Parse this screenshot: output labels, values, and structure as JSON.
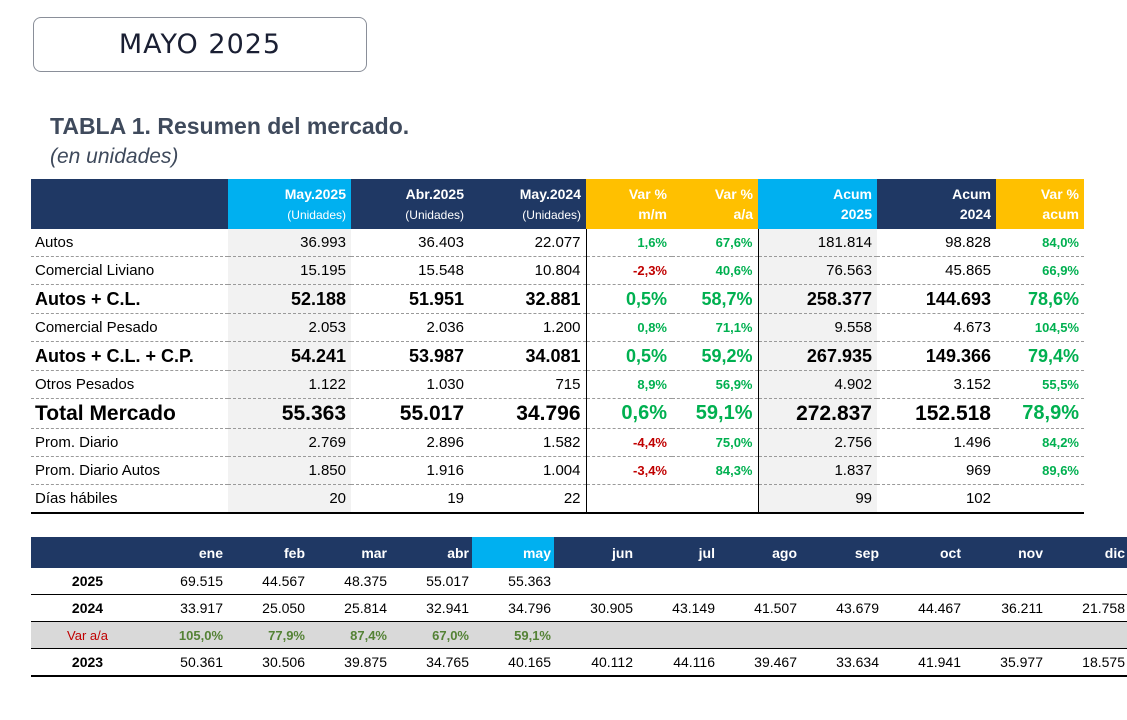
{
  "header": {
    "month": "MAYO 2025"
  },
  "table1": {
    "title": "TABLA 1. Resumen del mercado.",
    "subtitle": "(en unidades)",
    "columns": [
      {
        "l1": "May.2025",
        "l2": "(Unidades)"
      },
      {
        "l1": "Abr.2025",
        "l2": "(Unidades)"
      },
      {
        "l1": "May.2024",
        "l2": "(Unidades)"
      },
      {
        "l1": "Var %",
        "l2": "m/m"
      },
      {
        "l1": "Var %",
        "l2": "a/a"
      },
      {
        "l1": "Acum",
        "l2": "2025"
      },
      {
        "l1": "Acum",
        "l2": "2024"
      },
      {
        "l1": "Var %",
        "l2": "acum"
      }
    ],
    "rows": [
      {
        "label": "Autos",
        "may25": "36.993",
        "abr25": "36.403",
        "may24": "22.077",
        "mm": "1,6%",
        "aa": "67,6%",
        "acum25": "181.814",
        "acum24": "98.828",
        "vacum": "84,0%"
      },
      {
        "label": "Comercial Liviano",
        "may25": "15.195",
        "abr25": "15.548",
        "may24": "10.804",
        "mm": "-2,3%",
        "aa": "40,6%",
        "acum25": "76.563",
        "acum24": "45.865",
        "vacum": "66,9%"
      },
      {
        "label": "Autos + C.L.",
        "may25": "52.188",
        "abr25": "51.951",
        "may24": "32.881",
        "mm": "0,5%",
        "aa": "58,7%",
        "acum25": "258.377",
        "acum24": "144.693",
        "vacum": "78,6%"
      },
      {
        "label": "Comercial Pesado",
        "may25": "2.053",
        "abr25": "2.036",
        "may24": "1.200",
        "mm": "0,8%",
        "aa": "71,1%",
        "acum25": "9.558",
        "acum24": "4.673",
        "vacum": "104,5%"
      },
      {
        "label": "Autos + C.L. + C.P.",
        "may25": "54.241",
        "abr25": "53.987",
        "may24": "34.081",
        "mm": "0,5%",
        "aa": "59,2%",
        "acum25": "267.935",
        "acum24": "149.366",
        "vacum": "79,4%"
      },
      {
        "label": "Otros Pesados",
        "may25": "1.122",
        "abr25": "1.030",
        "may24": "715",
        "mm": "8,9%",
        "aa": "56,9%",
        "acum25": "4.902",
        "acum24": "3.152",
        "vacum": "55,5%"
      },
      {
        "label": "Total Mercado",
        "may25": "55.363",
        "abr25": "55.017",
        "may24": "34.796",
        "mm": "0,6%",
        "aa": "59,1%",
        "acum25": "272.837",
        "acum24": "152.518",
        "vacum": "78,9%"
      },
      {
        "label": "Prom. Diario",
        "may25": "2.769",
        "abr25": "2.896",
        "may24": "1.582",
        "mm": "-4,4%",
        "aa": "75,0%",
        "acum25": "2.756",
        "acum24": "1.496",
        "vacum": "84,2%"
      },
      {
        "label": "Prom. Diario Autos",
        "may25": "1.850",
        "abr25": "1.916",
        "may24": "1.004",
        "mm": "-3,4%",
        "aa": "84,3%",
        "acum25": "1.837",
        "acum24": "969",
        "vacum": "89,6%"
      },
      {
        "label": "Días hábiles",
        "may25": "20",
        "abr25": "19",
        "may24": "22",
        "mm": "",
        "aa": "",
        "acum25": "99",
        "acum24": "102",
        "vacum": ""
      }
    ]
  },
  "table2": {
    "months": [
      "ene",
      "feb",
      "mar",
      "abr",
      "may",
      "jun",
      "jul",
      "ago",
      "sep",
      "oct",
      "nov",
      "dic"
    ],
    "rows": [
      {
        "label": "2025",
        "values": [
          "69.515",
          "44.567",
          "48.375",
          "55.017",
          "55.363",
          "",
          "",
          "",
          "",
          "",
          "",
          ""
        ]
      },
      {
        "label": "2024",
        "values": [
          "33.917",
          "25.050",
          "25.814",
          "32.941",
          "34.796",
          "30.905",
          "43.149",
          "41.507",
          "43.679",
          "44.467",
          "36.211",
          "21.758"
        ]
      },
      {
        "label": "Var a/a",
        "values": [
          "105,0%",
          "77,9%",
          "87,4%",
          "67,0%",
          "59,1%",
          "",
          "",
          "",
          "",
          "",
          "",
          ""
        ]
      },
      {
        "label": "2023",
        "values": [
          "50.361",
          "30.506",
          "39.875",
          "34.765",
          "40.165",
          "40.112",
          "44.116",
          "39.467",
          "33.634",
          "41.941",
          "35.977",
          "18.575"
        ]
      }
    ]
  },
  "colors": {
    "navy": "#1f3864",
    "blue": "#00b0f0",
    "gold": "#ffc000",
    "positive": "#00b050",
    "negative": "#c00000"
  }
}
